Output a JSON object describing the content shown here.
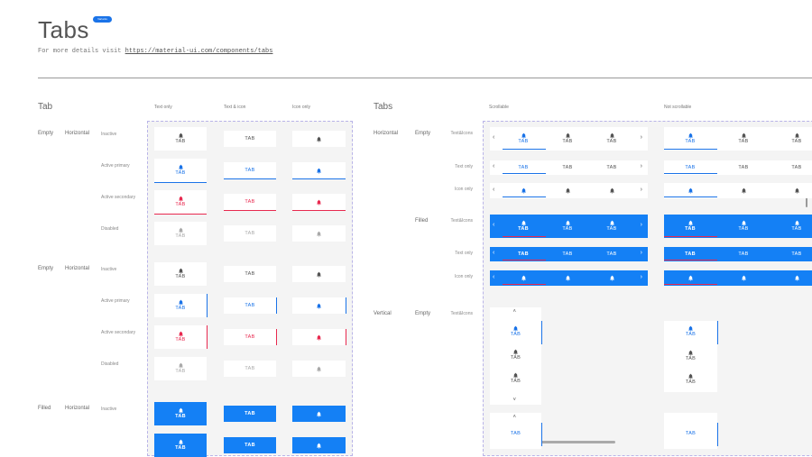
{
  "header": {
    "title": "Tabs",
    "badge": "Variants",
    "details_prefix": "For more details visit",
    "details_link": "https://material-ui.com/components/tabs"
  },
  "colors": {
    "primary": "#1a73e8",
    "secondary": "#e8294f",
    "filled": "#1480f5",
    "inactive": "#555555",
    "disabled": "#aaaaaa"
  },
  "tab_label": "TAB",
  "icon": "bell-icon",
  "left": {
    "section": "Tab",
    "columns": [
      "Text only",
      "Text & icon",
      "Icon only"
    ],
    "groups": [
      {
        "style": "Empty",
        "orientation": "Horizontal",
        "indicator": "bottom",
        "states": [
          "Inactive",
          "Active primary",
          "Active secondary",
          "Disabled"
        ]
      },
      {
        "style": "Empty",
        "orientation": "Horizontal",
        "indicator": "right",
        "states": [
          "Inactive",
          "Active primary",
          "Active secondary",
          "Disabled"
        ]
      },
      {
        "style": "Filled",
        "orientation": "Horizontal",
        "indicator": "bottom",
        "states": [
          "Inactive",
          ""
        ]
      }
    ]
  },
  "right": {
    "section": "Tabs",
    "columns": [
      "Scrollable",
      "Not scrollable"
    ],
    "rows": [
      {
        "orientation": "Horizontal",
        "style": "Empty",
        "content": "Text&Icons"
      },
      {
        "orientation": "",
        "style": "",
        "content": "Text only"
      },
      {
        "orientation": "",
        "style": "",
        "content": "Icon only"
      },
      {
        "orientation": "",
        "style": "Filled",
        "content": "Text&Icons"
      },
      {
        "orientation": "",
        "style": "",
        "content": "Text only"
      },
      {
        "orientation": "",
        "style": "",
        "content": "Icon only"
      },
      {
        "orientation": "Vertical",
        "style": "Empty",
        "content": "Text&Icons"
      }
    ]
  }
}
